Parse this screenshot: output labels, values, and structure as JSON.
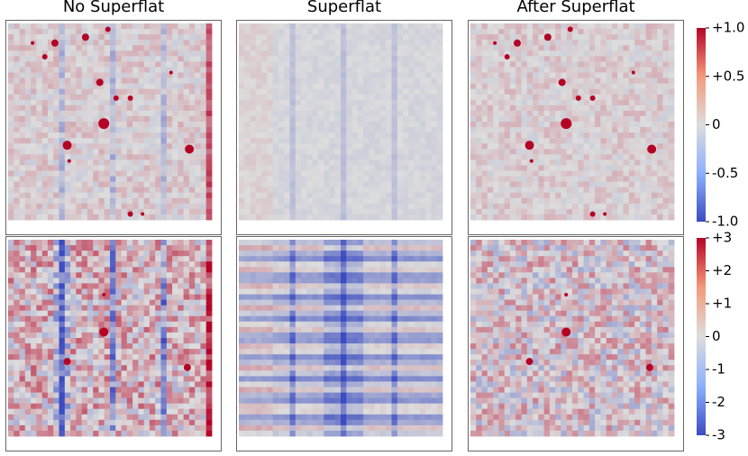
{
  "panels": {
    "titles": [
      "No Superflat",
      "Superflat",
      "After Superflat"
    ]
  },
  "colorbars": [
    {
      "lim": [
        -1,
        1
      ],
      "ticks": [
        {
          "value": 1,
          "label": "+1.0"
        },
        {
          "value": 0.5,
          "label": "+0.5"
        },
        0,
        -0.5,
        {
          "value": -1,
          "label": "-1.0"
        }
      ]
    },
    {
      "lim": [
        -3,
        3
      ],
      "ticks": [
        {
          "value": 3,
          "label": "+3"
        },
        {
          "value": 2,
          "label": "+2"
        },
        {
          "value": 1,
          "label": "+1"
        },
        0,
        -1,
        -2,
        -3
      ]
    }
  ]
}
